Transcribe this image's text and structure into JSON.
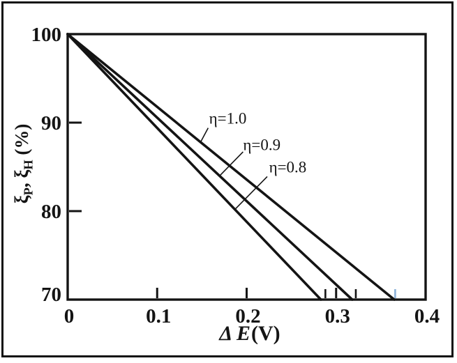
{
  "colors": {
    "background": "#ffffff",
    "frame": "#0f0f0f",
    "axis": "#141414",
    "line": "#141414",
    "text": "#141414",
    "marker_tick_blue": "#8ab1d9"
  },
  "chart_data": {
    "type": "line",
    "title": "",
    "xlabel": "ΔE(V)",
    "xlabel_symbol": "Δ E",
    "xlabel_unit": "(V)",
    "ylabel": "ξP, ξH (%)",
    "ylabel_parts": {
      "xi1": "ξ",
      "sub1": "P",
      "sep": ", ",
      "xi2": "ξ",
      "sub2": "H",
      "unit": " (%)"
    },
    "xlim": [
      0,
      0.4
    ],
    "ylim": [
      70,
      100
    ],
    "grid": false,
    "legend_position": "none",
    "xticks": [
      {
        "value": 0,
        "label": "0",
        "tick": false
      },
      {
        "value": 0.1,
        "label": "0.1",
        "tick": true
      },
      {
        "value": 0.2,
        "label": "0.2",
        "tick": true
      },
      {
        "value": 0.3,
        "label": "0.3",
        "tick": true
      },
      {
        "value": 0.4,
        "label": "0.4",
        "tick": false
      }
    ],
    "yticks": [
      {
        "value": 100,
        "label": "100",
        "tick": false
      },
      {
        "value": 90,
        "label": "90",
        "tick": true
      },
      {
        "value": 80,
        "label": "80",
        "tick": true
      },
      {
        "value": 70,
        "label": "70",
        "tick": false
      }
    ],
    "series": [
      {
        "name": "η=0.8",
        "points": [
          [
            0,
            100
          ],
          [
            0.283,
            70
          ]
        ]
      },
      {
        "name": "η=0.9",
        "points": [
          [
            0,
            100
          ],
          [
            0.318,
            70
          ]
        ]
      },
      {
        "name": "η=1.0",
        "points": [
          [
            0,
            100
          ],
          [
            0.365,
            70
          ]
        ]
      }
    ],
    "annotations": [
      {
        "text": "η=1.0",
        "x": 0.158,
        "y": 91.3,
        "leader": [
          [
            0.157,
            89.4
          ],
          [
            0.148,
            87.7
          ]
        ]
      },
      {
        "text": "η=0.9",
        "x": 0.196,
        "y": 88.3,
        "leader": [
          [
            0.196,
            86.7
          ],
          [
            0.169,
            83.9
          ]
        ]
      },
      {
        "text": "η=0.8",
        "x": 0.225,
        "y": 85.8,
        "leader": [
          [
            0.223,
            83.9
          ],
          [
            0.187,
            80.2
          ]
        ]
      }
    ],
    "marker_ticks": [
      {
        "x": 0.288,
        "color": "#141414"
      },
      {
        "x": 0.322,
        "color": "#141414"
      },
      {
        "x": 0.366,
        "color": "#8ab1d9"
      }
    ]
  }
}
